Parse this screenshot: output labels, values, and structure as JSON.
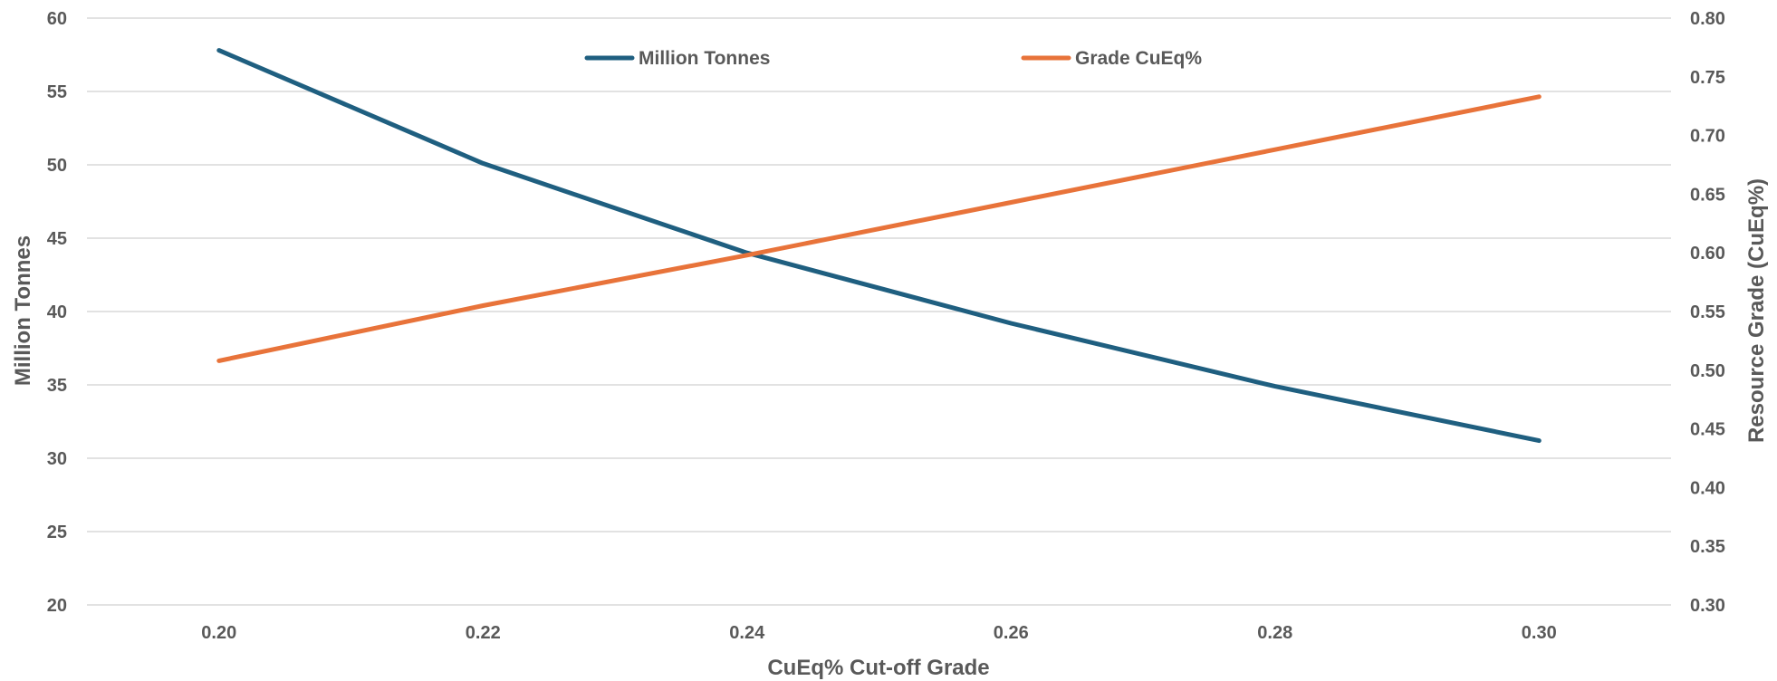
{
  "chart_data": {
    "type": "line",
    "x": [
      0.2,
      0.22,
      0.24,
      0.26,
      0.28,
      0.3
    ],
    "x_tick_labels": [
      "0.20",
      "0.22",
      "0.24",
      "0.26",
      "0.28",
      "0.30"
    ],
    "xlabel": "CuEq% Cut-off Grade",
    "xlim": [
      0.19,
      0.31
    ],
    "ylabel_left": "Million Tonnes",
    "ylim_left": [
      20,
      60
    ],
    "y_left_tick_labels": [
      "20",
      "25",
      "30",
      "35",
      "40",
      "45",
      "50",
      "55",
      "60"
    ],
    "ylabel_right": "Resource Grade (CuEq%)",
    "ylim_right": [
      0.3,
      0.8
    ],
    "y_right_tick_labels": [
      "0.30",
      "0.35",
      "0.40",
      "0.45",
      "0.50",
      "0.55",
      "0.60",
      "0.65",
      "0.70",
      "0.75",
      "0.80"
    ],
    "grid": true,
    "legend_position": "top-center",
    "series": [
      {
        "name": "Million Tonnes",
        "axis": "left",
        "color": "#1f5f80",
        "values": [
          57.8,
          50.1,
          44.0,
          39.2,
          34.9,
          31.2
        ]
      },
      {
        "name": "Grade CuEq%",
        "axis": "right",
        "color": "#e8733a",
        "values": [
          0.508,
          0.555,
          0.598,
          0.643,
          0.688,
          0.733
        ]
      }
    ]
  }
}
